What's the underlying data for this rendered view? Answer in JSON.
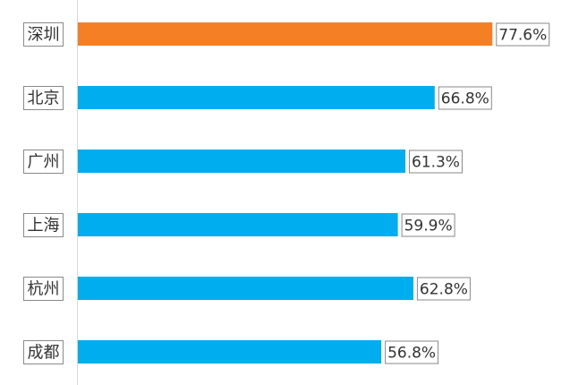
{
  "chart_data": {
    "type": "bar",
    "orientation": "horizontal",
    "categories": [
      "深圳",
      "北京",
      "广州",
      "上海",
      "杭州",
      "成都"
    ],
    "values": [
      77.6,
      66.8,
      61.3,
      59.9,
      62.8,
      56.8
    ],
    "value_labels": [
      "77.6%",
      "66.8%",
      "61.3%",
      "59.9%",
      "62.8%",
      "56.8%"
    ],
    "unit": "%",
    "xlim": [
      0,
      100
    ],
    "highlight_index": 0,
    "colors": {
      "bar": "#00aeef",
      "highlight": "#f47f24"
    },
    "grid": false,
    "legend": "none",
    "title": "",
    "xlabel": "",
    "ylabel": ""
  }
}
